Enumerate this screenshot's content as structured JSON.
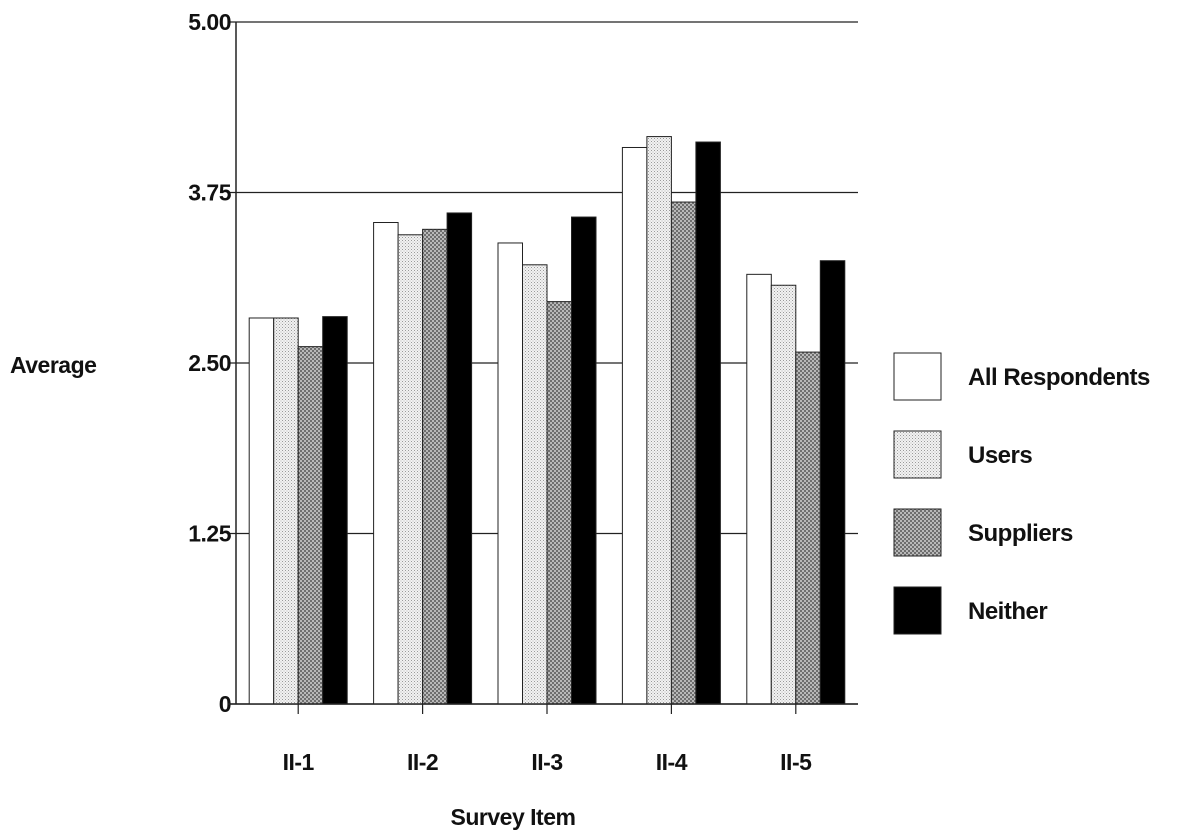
{
  "chart_data": {
    "type": "bar",
    "title": "",
    "xlabel": "Survey Item",
    "ylabel": "Average",
    "ylim": [
      0,
      5
    ],
    "yticks": [
      "0",
      "1.25",
      "2.50",
      "3.75",
      "5.00"
    ],
    "categories": [
      "II-1",
      "II-2",
      "II-3",
      "II-4",
      "II-5"
    ],
    "grid": true,
    "legend_position": "right",
    "series": [
      {
        "name": "All Respondents",
        "color": "#ffffff",
        "pattern": "white",
        "values": [
          2.83,
          3.53,
          3.38,
          4.08,
          3.15
        ]
      },
      {
        "name": "Users",
        "color": "#e6e6e6",
        "pattern": "light-dots",
        "values": [
          2.83,
          3.44,
          3.22,
          4.16,
          3.07
        ]
      },
      {
        "name": "Suppliers",
        "color": "#8c8c8c",
        "pattern": "dark-checker",
        "values": [
          2.62,
          3.48,
          2.95,
          3.68,
          2.58
        ]
      },
      {
        "name": "Neither",
        "color": "#000000",
        "pattern": "black",
        "values": [
          2.84,
          3.6,
          3.57,
          4.12,
          3.25
        ]
      }
    ]
  }
}
